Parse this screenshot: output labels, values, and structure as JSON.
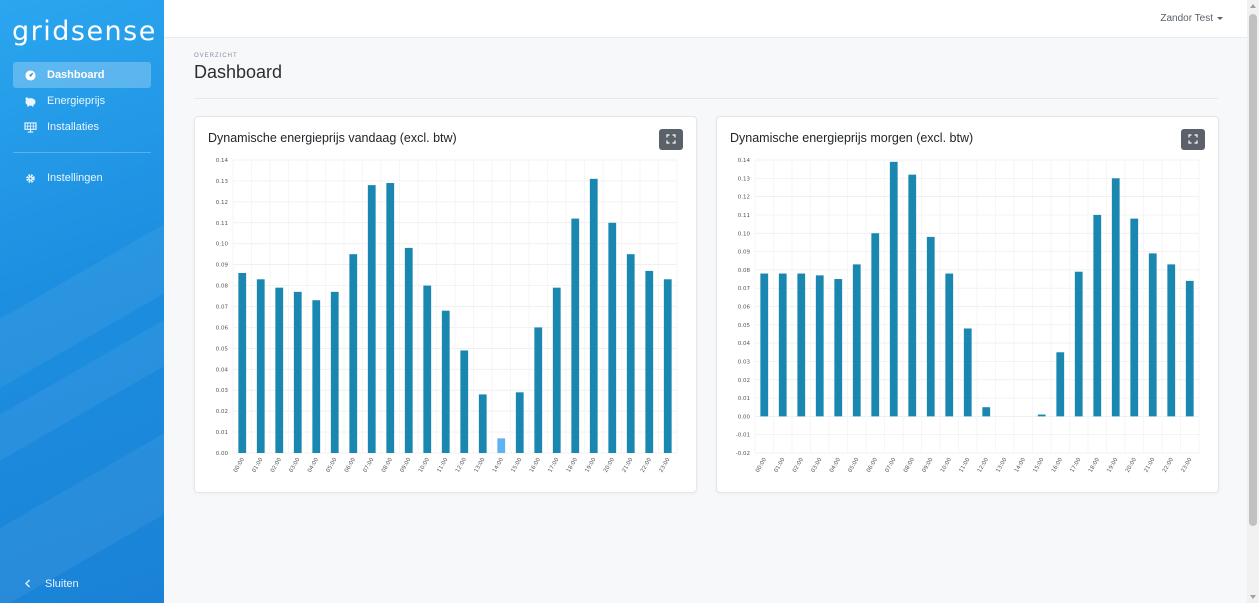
{
  "app": {
    "logo": "gridsense"
  },
  "sidebar": {
    "items": [
      {
        "label": "Dashboard",
        "icon": "gauge-icon",
        "active": true
      },
      {
        "label": "Energieprijs",
        "icon": "piggy-bank-icon",
        "active": false
      },
      {
        "label": "Installaties",
        "icon": "solar-panel-icon",
        "active": false
      },
      {
        "label": "Instellingen",
        "icon": "gear-icon",
        "active": false
      }
    ],
    "close_label": "Sluiten"
  },
  "topbar": {
    "user_name": "Zandor Test"
  },
  "page": {
    "subtitle": "OVERZICHT",
    "title": "Dashboard"
  },
  "colors": {
    "sidebar": "#1d8fe0",
    "bar": "#1a87b0",
    "bar_highlight": "#5fb3f3",
    "button": "#5a6169"
  },
  "chart_data": [
    {
      "type": "bar",
      "title": "Dynamische energieprijs vandaag (excl. btw)",
      "categories": [
        "00:00",
        "01:00",
        "02:00",
        "03:00",
        "04:00",
        "05:00",
        "06:00",
        "07:00",
        "08:00",
        "09:00",
        "10:00",
        "11:00",
        "12:00",
        "13:00",
        "14:00",
        "15:00",
        "16:00",
        "17:00",
        "18:00",
        "19:00",
        "20:00",
        "21:00",
        "22:00",
        "23:00"
      ],
      "values": [
        0.086,
        0.083,
        0.079,
        0.077,
        0.073,
        0.077,
        0.095,
        0.128,
        0.129,
        0.098,
        0.08,
        0.068,
        0.049,
        0.028,
        0.007,
        0.029,
        0.06,
        0.079,
        0.112,
        0.131,
        0.11,
        0.095,
        0.087,
        0.083
      ],
      "highlight_index": 14,
      "ylim": [
        0,
        0.14
      ],
      "yticks": [
        "0.00",
        "0.01",
        "0.02",
        "0.03",
        "0.04",
        "0.05",
        "0.06",
        "0.07",
        "0.08",
        "0.09",
        "0.10",
        "0.11",
        "0.12",
        "0.13",
        "0.14"
      ],
      "grid": true
    },
    {
      "type": "bar",
      "title": "Dynamische energieprijs morgen (excl. btw)",
      "categories": [
        "00:00",
        "01:00",
        "02:00",
        "03:00",
        "04:00",
        "05:00",
        "06:00",
        "07:00",
        "08:00",
        "09:00",
        "10:00",
        "11:00",
        "12:00",
        "13:00",
        "14:00",
        "15:00",
        "16:00",
        "17:00",
        "18:00",
        "19:00",
        "20:00",
        "21:00",
        "22:00",
        "23:00"
      ],
      "values": [
        0.078,
        0.078,
        0.078,
        0.077,
        0.075,
        0.083,
        0.1,
        0.139,
        0.132,
        0.098,
        0.078,
        0.048,
        0.005,
        0.0,
        0.0,
        0.001,
        0.035,
        0.079,
        0.11,
        0.13,
        0.108,
        0.089,
        0.083,
        0.074
      ],
      "highlight_index": -1,
      "ylim": [
        -0.02,
        0.14
      ],
      "yticks": [
        "-0.02",
        "-0.01",
        "0.00",
        "0.01",
        "0.02",
        "0.03",
        "0.04",
        "0.05",
        "0.06",
        "0.07",
        "0.08",
        "0.09",
        "0.10",
        "0.11",
        "0.12",
        "0.13",
        "0.14"
      ],
      "grid": true
    }
  ]
}
